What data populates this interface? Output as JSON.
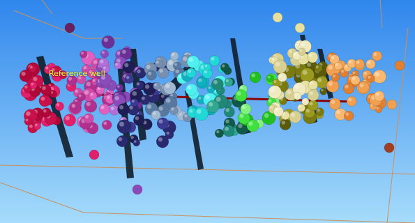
{
  "scene": {
    "reference_well_label": "Reference well",
    "background_top": "#2f86ec",
    "background_bottom": "#a6dcfb",
    "grid_line_color": "#c99060",
    "well_trajectory_color": "#8b0000",
    "panel_color": "#0f1e2c",
    "sphere_color_groups": [
      "crimson",
      "magenta",
      "violet",
      "navy",
      "slate",
      "cyan",
      "teal",
      "green",
      "olive",
      "khaki",
      "orange"
    ]
  }
}
